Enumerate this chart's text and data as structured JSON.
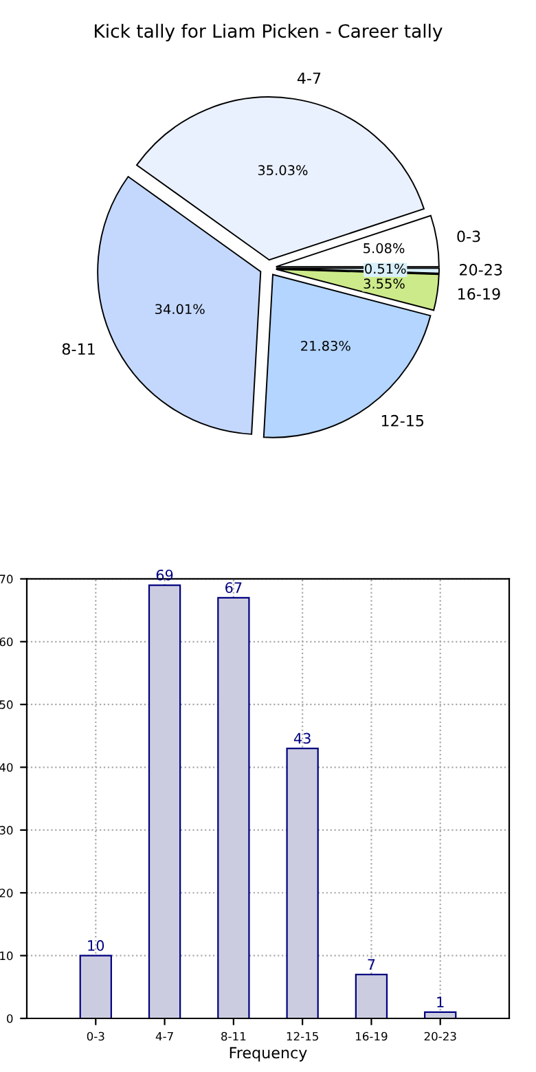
{
  "chart_data": [
    {
      "type": "pie",
      "title": "Kick tally for Liam Picken - Career tally",
      "categories": [
        "0-3",
        "4-7",
        "8-11",
        "12-15",
        "16-19",
        "20-23"
      ],
      "values": [
        5.08,
        35.03,
        34.01,
        21.83,
        3.55,
        0.51
      ],
      "value_labels": [
        "5.08%",
        "35.03%",
        "34.01%",
        "21.83%",
        "3.55%",
        "0.51%"
      ],
      "colors": [
        "#ffffff",
        "#eaf1fe",
        "#c4d8fe",
        "#b3d5ff",
        "#cdea8a",
        "#d8f0fa"
      ]
    },
    {
      "type": "bar",
      "xlabel": "Frequency",
      "categories": [
        "0-3",
        "4-7",
        "8-11",
        "12-15",
        "16-19",
        "20-23"
      ],
      "values": [
        10,
        69,
        67,
        43,
        7,
        1
      ],
      "color": "#cccce0",
      "ylim": [
        0,
        70
      ],
      "yticks": [
        0,
        10,
        20,
        30,
        40,
        50,
        60,
        70
      ],
      "grid": true,
      "data_labels": true
    }
  ]
}
